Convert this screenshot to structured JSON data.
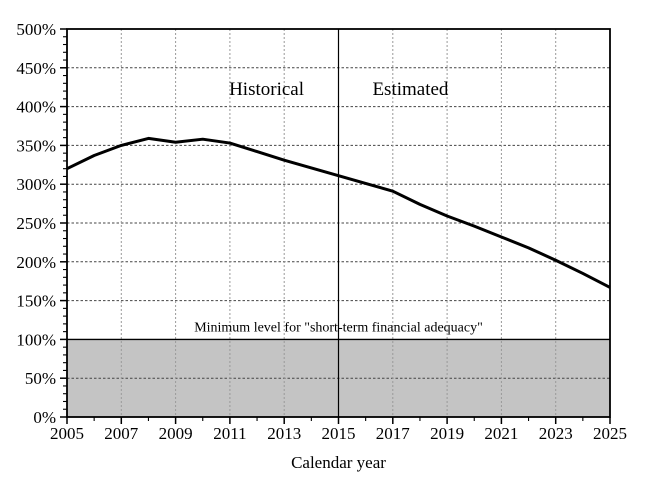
{
  "chart_data": {
    "type": "line",
    "title": "",
    "xlabel": "Calendar year",
    "ylabel": "",
    "x": [
      2005,
      2006,
      2007,
      2008,
      2009,
      2010,
      2011,
      2012,
      2013,
      2014,
      2015,
      2016,
      2017,
      2018,
      2019,
      2020,
      2021,
      2022,
      2023,
      2024,
      2025
    ],
    "values": [
      320,
      337,
      350,
      359,
      354,
      358,
      353,
      342,
      331,
      321,
      311,
      301,
      291,
      274,
      259,
      246,
      232,
      218,
      202,
      185,
      167
    ],
    "xlim": [
      2005,
      2025
    ],
    "ylim": [
      0,
      500
    ],
    "x_tick_values": [
      2005,
      2007,
      2009,
      2011,
      2013,
      2015,
      2017,
      2019,
      2021,
      2023,
      2025
    ],
    "x_tick_labels": [
      "2005",
      "2007",
      "2009",
      "2011",
      "2013",
      "2015",
      "2017",
      "2019",
      "2021",
      "2023",
      "2025"
    ],
    "x_minor_tick_values": [
      2006,
      2008,
      2010,
      2012,
      2014,
      2016,
      2018,
      2020,
      2022,
      2024
    ],
    "y_tick_values": [
      0,
      50,
      100,
      150,
      200,
      250,
      300,
      350,
      400,
      450,
      500
    ],
    "y_tick_labels": [
      "0%",
      "50%",
      "100%",
      "150%",
      "200%",
      "250%",
      "300%",
      "350%",
      "400%",
      "450%",
      "500%"
    ],
    "y_minor_step": 10,
    "grid": "dashed",
    "legend_position": "none",
    "divider_x": 2015,
    "annotations": {
      "historical": {
        "text": "Historical",
        "x": 2012.35,
        "y": 415
      },
      "estimated": {
        "text": "Estimated",
        "x": 2017.65,
        "y": 415
      },
      "minimum_level": {
        "text": "Minimum level for \"short-term financial adequacy\"",
        "x": 2015,
        "y": 110
      }
    },
    "shaded_band": {
      "y_from": 0,
      "y_to": 100,
      "fill": "#c4c4c4",
      "border": "#000000"
    }
  },
  "colors": {
    "background": "#ffffff",
    "series_line": "#000000",
    "h_grid": "#444444",
    "v_grid": "#999999",
    "frame": "#000000",
    "text": "#000000"
  }
}
